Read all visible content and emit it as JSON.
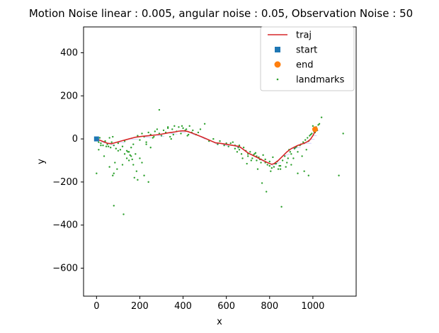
{
  "chart_data": {
    "type": "scatter",
    "title": "Motion Noise linear : 0.005, angular noise : 0.05, Observation Noise : 50",
    "xlabel": "x",
    "ylabel": "y",
    "xlim": [
      -60,
      1200
    ],
    "ylim": [
      -730,
      520
    ],
    "xticks": [
      0,
      200,
      400,
      600,
      800,
      1000
    ],
    "xtick_labels": [
      "0",
      "200",
      "400",
      "600",
      "800",
      "1000"
    ],
    "yticks": [
      400,
      200,
      0,
      -200,
      -400,
      -600
    ],
    "ytick_labels": [
      "400",
      "200",
      "0",
      "−200",
      "−400",
      "−600"
    ],
    "grid": false,
    "legend_position": "top-right",
    "colors": {
      "traj": "#d62728",
      "start": "#1f77b4",
      "end": "#ff7f0e",
      "landmarks": "#2ca02c",
      "heading": "#4040ff"
    },
    "series": [
      {
        "name": "traj",
        "kind": "line",
        "x": [
          0,
          25,
          50,
          70,
          95,
          120,
          150,
          180,
          210,
          240,
          270,
          300,
          330,
          360,
          380,
          400,
          420,
          440,
          460,
          490,
          520,
          550,
          570,
          600,
          630,
          660,
          680,
          700,
          730,
          760,
          790,
          810,
          820,
          840,
          860,
          880,
          900,
          930,
          960,
          980,
          990,
          995,
          1000,
          1005,
          1010,
          1015
        ],
        "y": [
          0,
          -10,
          -20,
          -22,
          -15,
          -8,
          0,
          8,
          12,
          15,
          18,
          22,
          28,
          32,
          36,
          38,
          35,
          28,
          20,
          8,
          -5,
          -18,
          -20,
          -25,
          -30,
          -35,
          -50,
          -65,
          -80,
          -95,
          -110,
          -118,
          -115,
          -100,
          -80,
          -60,
          -45,
          -30,
          -20,
          -10,
          0,
          8,
          15,
          25,
          35,
          50
        ]
      },
      {
        "name": "start",
        "kind": "marker",
        "x": [
          0
        ],
        "y": [
          0
        ]
      },
      {
        "name": "end",
        "kind": "marker",
        "x": [
          1010
        ],
        "y": [
          45
        ]
      },
      {
        "name": "landmarks",
        "kind": "scatter",
        "x": [
          5,
          10,
          15,
          20,
          30,
          40,
          50,
          55,
          60,
          65,
          70,
          75,
          80,
          90,
          100,
          110,
          120,
          130,
          140,
          150,
          160,
          170,
          180,
          190,
          200,
          210,
          220,
          230,
          240,
          250,
          260,
          270,
          280,
          290,
          300,
          310,
          320,
          330,
          340,
          350,
          360,
          370,
          380,
          390,
          400,
          410,
          420,
          430,
          440,
          460,
          480,
          500,
          540,
          570,
          600,
          610,
          630,
          640,
          650,
          660,
          670,
          680,
          690,
          700,
          710,
          720,
          730,
          740,
          750,
          760,
          770,
          780,
          790,
          800,
          810,
          820,
          830,
          840,
          850,
          860,
          870,
          880,
          890,
          900,
          910,
          920,
          930,
          940,
          950,
          960,
          970,
          980,
          990,
          1000,
          1010,
          1020,
          1030,
          1040,
          0,
          20,
          60,
          75,
          80,
          100,
          120,
          130,
          140,
          150,
          160,
          170,
          175,
          185,
          190,
          200,
          210,
          220,
          240,
          290,
          80,
          125,
          640,
          660,
          700,
          740,
          760,
          780,
          800,
          850,
          900,
          930,
          960,
          980,
          1120,
          1140,
          10,
          35,
          45,
          85,
          95,
          145,
          155,
          165,
          230,
          250,
          265,
          330,
          345,
          355,
          395,
          415,
          425,
          445,
          470,
          520,
          560,
          590,
          620,
          655,
          675,
          695,
          715,
          725,
          735,
          745,
          755,
          765,
          785,
          805,
          815,
          825,
          835,
          845,
          855,
          875,
          885,
          895,
          915,
          925,
          945,
          955,
          965,
          975,
          985,
          995,
          1005,
          1015,
          1025
        ],
        "y": [
          -5,
          -15,
          5,
          -20,
          -30,
          -10,
          -25,
          -35,
          5,
          -40,
          -15,
          10,
          -30,
          -45,
          -20,
          -50,
          -35,
          -10,
          -55,
          -60,
          -40,
          -25,
          -70,
          15,
          -5,
          25,
          10,
          -15,
          30,
          20,
          5,
          35,
          45,
          25,
          15,
          40,
          30,
          50,
          10,
          45,
          60,
          35,
          55,
          25,
          50,
          40,
          15,
          60,
          30,
          20,
          45,
          70,
          0,
          -10,
          -20,
          -35,
          -15,
          -45,
          -60,
          -30,
          -70,
          -40,
          -55,
          -80,
          -60,
          -90,
          -70,
          -100,
          -85,
          -110,
          -75,
          -95,
          -120,
          -105,
          -135,
          -130,
          -115,
          -140,
          -125,
          -100,
          -80,
          -110,
          -50,
          -70,
          -90,
          -40,
          -60,
          -30,
          -80,
          -20,
          -50,
          -10,
          20,
          60,
          30,
          40,
          70,
          100,
          -160,
          -30,
          -130,
          -170,
          -310,
          -55,
          -120,
          -70,
          -90,
          -100,
          -80,
          -120,
          -180,
          -150,
          -190,
          -90,
          -110,
          -170,
          -200,
          135,
          -160,
          -350,
          -30,
          -50,
          -70,
          -80,
          -95,
          -110,
          -125,
          -140,
          -120,
          -160,
          -150,
          -170,
          -170,
          25,
          -50,
          -80,
          -35,
          -110,
          -140,
          -60,
          -75,
          -95,
          -25,
          -40,
          10,
          55,
          0,
          20,
          60,
          45,
          20,
          40,
          30,
          -10,
          -25,
          -30,
          -20,
          -40,
          -90,
          -115,
          -100,
          -75,
          -65,
          -140,
          -95,
          -205,
          -245,
          -150,
          -85,
          -115,
          -105,
          -125,
          -315,
          -130,
          -90,
          -60,
          -45,
          -35,
          -25,
          -15,
          -5,
          5,
          15,
          25,
          35,
          55,
          65
        ]
      }
    ],
    "legend": [
      {
        "key": "traj",
        "label": "traj",
        "marker": "line"
      },
      {
        "key": "start",
        "label": "start",
        "marker": "square"
      },
      {
        "key": "end",
        "label": "end",
        "marker": "circle"
      },
      {
        "key": "landmarks",
        "label": "landmarks",
        "marker": "dot"
      }
    ]
  }
}
